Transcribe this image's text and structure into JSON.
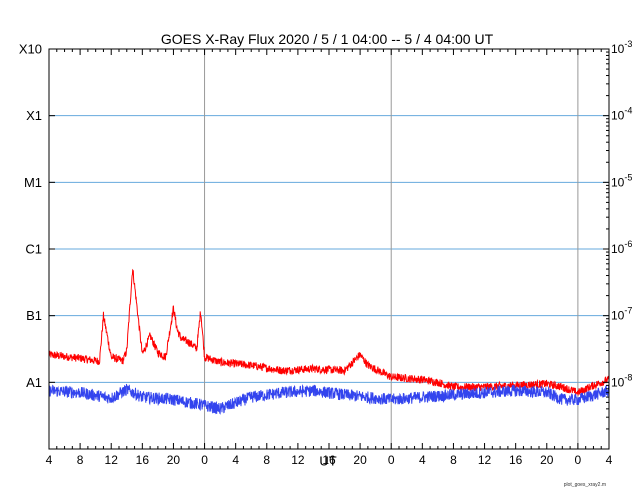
{
  "chart_data": {
    "type": "line",
    "title": "GOES X-Ray Flux   2020 /  5  /  1   04:00 --  5  /  4   04:00   UT",
    "xlabel": "UT",
    "x_start": "2020-05-01T04:00",
    "x_end": "2020-05-04T04:00",
    "x_tick_labels": [
      "4",
      "8",
      "12",
      "16",
      "20",
      "0",
      "4",
      "8",
      "12",
      "16",
      "20",
      "0",
      "4",
      "8",
      "12",
      "16",
      "20",
      "0",
      "4"
    ],
    "day_boundaries": [
      "2020-05-02T00:00",
      "2020-05-03T00:00",
      "2020-05-04T00:00"
    ],
    "y_scale": "log",
    "ylim": [
      1e-09,
      0.001
    ],
    "flare_class_labels": [
      "X10",
      "X1",
      "M1",
      "C1",
      "B1",
      "A1"
    ],
    "flux_labels": [
      {
        "base": "10",
        "exp": "-3"
      },
      {
        "base": "10",
        "exp": "-4"
      },
      {
        "base": "10",
        "exp": "-5"
      },
      {
        "base": "10",
        "exp": "-6"
      },
      {
        "base": "10",
        "exp": "-7"
      },
      {
        "base": "10",
        "exp": "-8"
      }
    ],
    "grid": "horizontal at class levels",
    "series": [
      {
        "color": "#ff0000",
        "x": [
          "2020-05-01T04:00",
          "2020-05-01T08:00",
          "2020-05-01T10:00",
          "2020-05-01T10:30",
          "2020-05-01T11:00",
          "2020-05-01T12:00",
          "2020-05-01T13:30",
          "2020-05-01T14:00",
          "2020-05-01T14:45",
          "2020-05-01T16:00",
          "2020-05-01T17:00",
          "2020-05-01T18:00",
          "2020-05-01T19:00",
          "2020-05-01T20:00",
          "2020-05-01T20:30",
          "2020-05-01T21:00",
          "2020-05-01T22:00",
          "2020-05-01T23:00",
          "2020-05-01T23:30",
          "2020-05-02T00:00",
          "2020-05-02T02:00",
          "2020-05-02T06:00",
          "2020-05-02T10:00",
          "2020-05-02T14:00",
          "2020-05-02T18:00",
          "2020-05-02T20:00",
          "2020-05-02T21:00",
          "2020-05-03T00:00",
          "2020-05-03T04:00",
          "2020-05-03T06:00",
          "2020-05-03T08:00",
          "2020-05-03T12:00",
          "2020-05-03T16:00",
          "2020-05-03T20:00",
          "2020-05-03T22:00",
          "2020-05-04T00:00",
          "2020-05-04T02:00",
          "2020-05-04T04:00"
        ],
        "values": [
          2.6e-08,
          2.3e-08,
          2.1e-08,
          2.1e-08,
          1e-07,
          2.4e-08,
          2.1e-08,
          3e-08,
          5.2e-07,
          2.6e-08,
          5e-08,
          2.8e-08,
          2.4e-08,
          1.3e-07,
          6e-08,
          4.5e-08,
          4e-08,
          3.2e-08,
          1.2e-07,
          2.4e-08,
          2e-08,
          1.8e-08,
          1.5e-08,
          1.6e-08,
          1.5e-08,
          2.6e-08,
          1.8e-08,
          1.2e-08,
          1.1e-08,
          1e-08,
          8.5e-09,
          8.5e-09,
          9e-09,
          9.5e-09,
          8.5e-09,
          7e-09,
          9e-09,
          1.1e-08
        ]
      },
      {
        "color": "#3344ee",
        "x": [
          "2020-05-01T04:00",
          "2020-05-01T08:00",
          "2020-05-01T12:00",
          "2020-05-01T14:00",
          "2020-05-01T16:00",
          "2020-05-01T20:00",
          "2020-05-02T00:00",
          "2020-05-02T02:00",
          "2020-05-02T06:00",
          "2020-05-02T10:00",
          "2020-05-02T14:00",
          "2020-05-02T18:00",
          "2020-05-03T00:00",
          "2020-05-03T04:00",
          "2020-05-03T08:00",
          "2020-05-03T12:00",
          "2020-05-03T16:00",
          "2020-05-03T20:00",
          "2020-05-03T22:00",
          "2020-05-04T00:00",
          "2020-05-04T04:00"
        ],
        "values": [
          7.5e-09,
          7e-09,
          5.8e-09,
          7.8e-09,
          6e-09,
          5.5e-09,
          4.5e-09,
          4e-09,
          6e-09,
          7e-09,
          7.5e-09,
          6.5e-09,
          5.5e-09,
          6e-09,
          6.5e-09,
          7e-09,
          7.5e-09,
          7e-09,
          5.5e-09,
          5.5e-09,
          7.5e-09
        ]
      }
    ]
  },
  "footer_text": "plot_goes_xray2.m"
}
